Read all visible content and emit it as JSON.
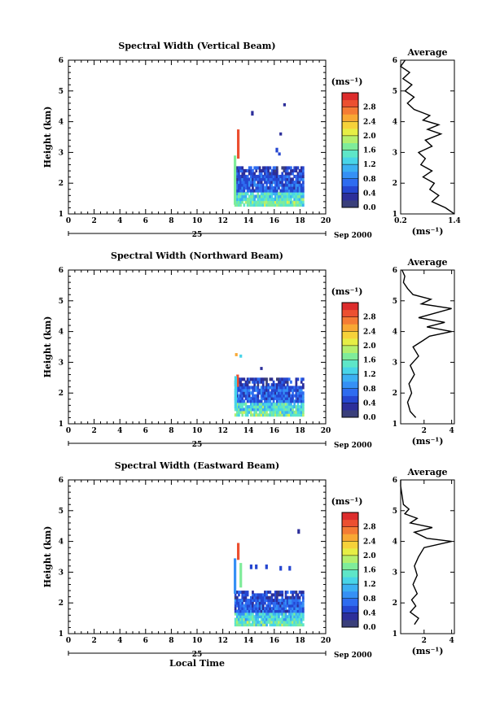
{
  "chart_data": [
    {
      "type": "heatmap",
      "title": "Spectral Width (Vertical Beam)",
      "xlabel": "",
      "ylabel": "Height (km)",
      "xlim": [
        0,
        20
      ],
      "ylim": [
        1,
        6
      ],
      "xticks": [
        "0",
        "2",
        "4",
        "6",
        "8",
        "10",
        "12",
        "14",
        "16",
        "18",
        "20"
      ],
      "yticks": [
        "1",
        "2",
        "3",
        "4",
        "5",
        "6"
      ],
      "date_day": "25",
      "date_month": "Sep 2000",
      "unit_label": "(ms⁻¹)",
      "colorbar_ticks": [
        "0.0",
        "0.4",
        "0.8",
        "1.2",
        "1.6",
        "2.0",
        "2.4",
        "2.8"
      ],
      "coverage": {
        "t_start": 12.9,
        "t_end": 18.3,
        "h_low": 1.25,
        "h_high": 2.55
      },
      "features": [
        {
          "t": 13.2,
          "h0": 2.8,
          "h1": 3.75,
          "level": 2.9
        },
        {
          "t": 12.95,
          "h0": 1.3,
          "h1": 2.9,
          "level": 1.6
        },
        {
          "t": 14.3,
          "h0": 4.2,
          "h1": 4.35,
          "level": 0.3
        },
        {
          "t": 16.5,
          "h0": 3.55,
          "h1": 3.65,
          "level": 0.3
        },
        {
          "t": 16.2,
          "h0": 3.0,
          "h1": 3.15,
          "level": 0.4
        },
        {
          "t": 16.4,
          "h0": 2.9,
          "h1": 3.0,
          "level": 0.5
        },
        {
          "t": 16.8,
          "h0": 4.5,
          "h1": 4.6,
          "level": 0.3
        }
      ],
      "average_profile": {
        "title": "Average",
        "xlabel": "(ms⁻¹)",
        "xlim": [
          0.2,
          1.4
        ],
        "xticks": [
          "0.2",
          "1.4"
        ],
        "yticks": [
          "1",
          "2",
          "3",
          "4",
          "5",
          "6"
        ],
        "points": [
          [
            1.4,
            1.0
          ],
          [
            1.2,
            1.2
          ],
          [
            0.9,
            1.4
          ],
          [
            1.05,
            1.6
          ],
          [
            0.85,
            1.8
          ],
          [
            0.95,
            2.0
          ],
          [
            0.7,
            2.2
          ],
          [
            0.9,
            2.4
          ],
          [
            0.65,
            2.6
          ],
          [
            0.75,
            2.8
          ],
          [
            0.6,
            3.0
          ],
          [
            0.9,
            3.2
          ],
          [
            0.75,
            3.4
          ],
          [
            1.1,
            3.6
          ],
          [
            0.8,
            3.75
          ],
          [
            1.05,
            3.9
          ],
          [
            0.7,
            4.05
          ],
          [
            0.85,
            4.2
          ],
          [
            0.5,
            4.4
          ],
          [
            0.35,
            4.6
          ],
          [
            0.5,
            4.8
          ],
          [
            0.3,
            5.0
          ],
          [
            0.45,
            5.2
          ],
          [
            0.25,
            5.4
          ],
          [
            0.4,
            5.6
          ],
          [
            0.2,
            5.8
          ],
          [
            0.3,
            6.0
          ]
        ]
      }
    },
    {
      "type": "heatmap",
      "title": "Spectral Width (Northward Beam)",
      "xlabel": "",
      "ylabel": "Height (km)",
      "xlim": [
        0,
        20
      ],
      "ylim": [
        1,
        6
      ],
      "xticks": [
        "0",
        "2",
        "4",
        "6",
        "8",
        "10",
        "12",
        "14",
        "16",
        "18",
        "20"
      ],
      "yticks": [
        "1",
        "2",
        "3",
        "4",
        "5",
        "6"
      ],
      "date_day": "25",
      "date_month": "Sep 2000",
      "unit_label": "(ms⁻¹)",
      "colorbar_ticks": [
        "0.0",
        "0.4",
        "0.8",
        "1.2",
        "1.6",
        "2.0",
        "2.4",
        "2.8"
      ],
      "coverage": {
        "t_start": 12.9,
        "t_end": 18.3,
        "h_low": 1.25,
        "h_high": 2.5
      },
      "features": [
        {
          "t": 13.15,
          "h0": 2.2,
          "h1": 2.6,
          "level": 2.9
        },
        {
          "t": 13.0,
          "h0": 1.5,
          "h1": 2.55,
          "level": 1.4
        },
        {
          "t": 13.05,
          "h0": 3.2,
          "h1": 3.3,
          "level": 2.5
        },
        {
          "t": 13.4,
          "h0": 3.15,
          "h1": 3.25,
          "level": 1.4
        },
        {
          "t": 15.0,
          "h0": 2.75,
          "h1": 2.85,
          "level": 0.3
        }
      ],
      "average_profile": {
        "title": "Average",
        "xlabel": "(ms⁻¹)",
        "xlim": [
          0.3,
          4.2
        ],
        "xticks": [
          "2",
          "4"
        ],
        "yticks": [
          "1",
          "2",
          "3",
          "4",
          "5",
          "6"
        ],
        "points": [
          [
            1.4,
            1.2
          ],
          [
            1.0,
            1.4
          ],
          [
            0.8,
            1.7
          ],
          [
            1.1,
            2.0
          ],
          [
            0.9,
            2.3
          ],
          [
            1.3,
            2.6
          ],
          [
            1.0,
            2.9
          ],
          [
            1.6,
            3.2
          ],
          [
            1.2,
            3.5
          ],
          [
            1.9,
            3.7
          ],
          [
            2.4,
            3.85
          ],
          [
            4.0,
            4.0
          ],
          [
            2.2,
            4.15
          ],
          [
            3.5,
            4.3
          ],
          [
            1.6,
            4.45
          ],
          [
            2.8,
            4.6
          ],
          [
            4.0,
            4.75
          ],
          [
            1.8,
            4.9
          ],
          [
            2.5,
            5.05
          ],
          [
            1.2,
            5.2
          ],
          [
            0.8,
            5.4
          ],
          [
            0.5,
            5.6
          ],
          [
            0.6,
            5.8
          ],
          [
            0.4,
            6.0
          ]
        ]
      }
    },
    {
      "type": "heatmap",
      "title": "Spectral Width (Eastward Beam)",
      "xlabel": "Local Time",
      "ylabel": "Height (km)",
      "xlim": [
        0,
        20
      ],
      "ylim": [
        1,
        6
      ],
      "xticks": [
        "0",
        "2",
        "4",
        "6",
        "8",
        "10",
        "12",
        "14",
        "16",
        "18",
        "20"
      ],
      "yticks": [
        "1",
        "2",
        "3",
        "4",
        "5",
        "6"
      ],
      "date_day": "25",
      "date_month": "Sep 2000",
      "unit_label": "(ms⁻¹)",
      "colorbar_ticks": [
        "0.0",
        "0.4",
        "0.8",
        "1.2",
        "1.6",
        "2.0",
        "2.4",
        "2.8"
      ],
      "coverage": {
        "t_start": 12.9,
        "t_end": 18.3,
        "h_low": 1.25,
        "h_high": 2.4
      },
      "features": [
        {
          "t": 13.2,
          "h0": 3.4,
          "h1": 3.95,
          "level": 2.9
        },
        {
          "t": 12.95,
          "h0": 2.3,
          "h1": 3.45,
          "level": 0.8
        },
        {
          "t": 13.4,
          "h0": 2.5,
          "h1": 3.3,
          "level": 1.6
        },
        {
          "t": 14.2,
          "h0": 3.1,
          "h1": 3.25,
          "level": 0.4
        },
        {
          "t": 14.6,
          "h0": 3.1,
          "h1": 3.25,
          "level": 0.4
        },
        {
          "t": 15.4,
          "h0": 3.1,
          "h1": 3.25,
          "level": 0.4
        },
        {
          "t": 16.5,
          "h0": 3.05,
          "h1": 3.2,
          "level": 0.4
        },
        {
          "t": 17.2,
          "h0": 3.05,
          "h1": 3.2,
          "level": 0.5
        },
        {
          "t": 17.9,
          "h0": 4.25,
          "h1": 4.4,
          "level": 0.3
        }
      ],
      "average_profile": {
        "title": "Average",
        "xlabel": "(ms⁻¹)",
        "xlim": [
          0.3,
          4.2
        ],
        "xticks": [
          "2",
          "4"
        ],
        "yticks": [
          "1",
          "2",
          "3",
          "4",
          "5",
          "6"
        ],
        "points": [
          [
            1.3,
            1.3
          ],
          [
            1.6,
            1.5
          ],
          [
            1.0,
            1.7
          ],
          [
            1.4,
            1.9
          ],
          [
            1.1,
            2.1
          ],
          [
            1.5,
            2.3
          ],
          [
            1.2,
            2.6
          ],
          [
            1.5,
            2.9
          ],
          [
            1.3,
            3.2
          ],
          [
            1.6,
            3.5
          ],
          [
            2.0,
            3.8
          ],
          [
            4.0,
            4.0
          ],
          [
            2.2,
            4.1
          ],
          [
            1.3,
            4.3
          ],
          [
            2.6,
            4.45
          ],
          [
            1.0,
            4.6
          ],
          [
            1.5,
            4.75
          ],
          [
            0.6,
            4.9
          ],
          [
            0.9,
            5.05
          ],
          [
            0.5,
            5.2
          ],
          [
            0.4,
            5.5
          ],
          [
            0.3,
            5.8
          ],
          [
            0.3,
            6.0
          ]
        ]
      }
    }
  ]
}
